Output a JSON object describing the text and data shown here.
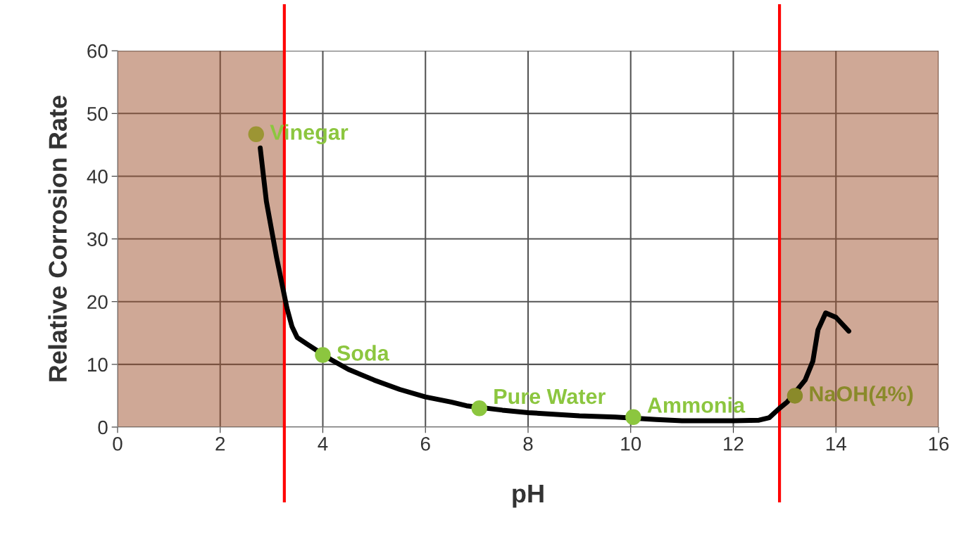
{
  "chart_data": {
    "type": "line",
    "xlabel": "pH",
    "ylabel": "Relative Corrosion Rate",
    "xlim": [
      0,
      16
    ],
    "ylim": [
      0,
      60
    ],
    "xticks": [
      0,
      2,
      4,
      6,
      8,
      10,
      12,
      14,
      16
    ],
    "yticks": [
      0,
      10,
      20,
      30,
      40,
      50,
      60
    ],
    "grid": true,
    "legend": false,
    "series": [
      {
        "color": "#000000",
        "marker": "none",
        "x": [
          2.78,
          2.9,
          3.1,
          3.3,
          3.4,
          3.5,
          3.7,
          4.15,
          4.5,
          5.0,
          5.5,
          6.0,
          6.5,
          6.8,
          7.5,
          8.0,
          9.0,
          9.7,
          10.5,
          11.0,
          12.0,
          12.5,
          12.7,
          12.9,
          13.05,
          13.4,
          13.55,
          13.65,
          13.8,
          14.0,
          14.25
        ],
        "values": [
          44.5,
          36,
          27,
          19,
          16,
          14.3,
          13.2,
          10.8,
          9.2,
          7.5,
          6,
          4.8,
          4,
          3.4,
          2.7,
          2.3,
          1.8,
          1.6,
          1.2,
          1.0,
          1.0,
          1.1,
          1.5,
          3,
          4,
          7.5,
          10.5,
          15.5,
          18.2,
          17.5,
          15.3
        ]
      },
      {
        "type": "scatter",
        "marker": "circle",
        "x": [
          2.7,
          4.0,
          7.05,
          10.05,
          13.2
        ],
        "values": [
          46.7,
          11.5,
          3.0,
          1.6,
          5.0
        ],
        "colors": [
          "#9c9534",
          "#8cc63f",
          "#8cc63f",
          "#8cc63f",
          "#8a8a2a"
        ]
      }
    ],
    "bands": [
      {
        "axis": "x",
        "from": 0,
        "to": 3.25,
        "color": "#a0522d"
      },
      {
        "axis": "x",
        "from": 12.9,
        "to": 16,
        "color": "#a0522d"
      }
    ],
    "ref_lines": [
      {
        "axis": "x",
        "value": 3.25,
        "color": "#ff0000"
      },
      {
        "axis": "x",
        "value": 12.9,
        "color": "#ff0000"
      }
    ],
    "annotations": [
      {
        "text": "Vinegar",
        "x": 2.7,
        "y": 46.7
      },
      {
        "text": "Soda",
        "x": 4.0,
        "y": 11.5
      },
      {
        "text": "Pure Water",
        "x": 7.05,
        "y": 3.0
      },
      {
        "text": "Ammonia",
        "x": 10.05,
        "y": 1.6
      },
      {
        "text": "NaOH(4%)",
        "x": 13.2,
        "y": 5.0
      }
    ]
  }
}
